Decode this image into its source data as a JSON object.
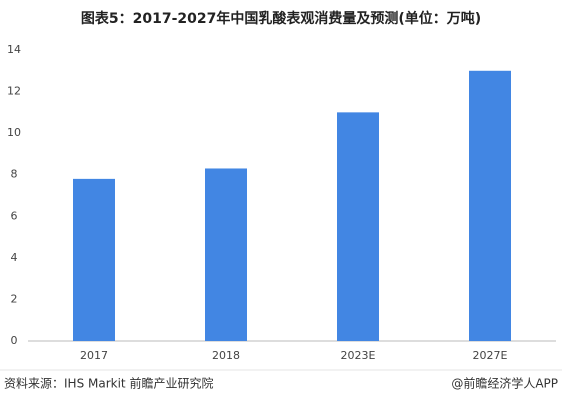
{
  "chart_data": {
    "type": "bar",
    "title": "图表5：2017-2027年中国乳酸表观消费量及预测(单位：万吨)",
    "categories": [
      "2017",
      "2018",
      "2023E",
      "2027E"
    ],
    "values": [
      7.8,
      8.3,
      11,
      13
    ],
    "color": "#4286e3",
    "ylim": [
      0,
      14
    ],
    "yticks": [
      0,
      2,
      4,
      6,
      8,
      10,
      12,
      14
    ],
    "grid": false,
    "source": "资料来源：IHS Markit 前瞻产业研究院",
    "credit": "@前瞻经济学人APP"
  }
}
